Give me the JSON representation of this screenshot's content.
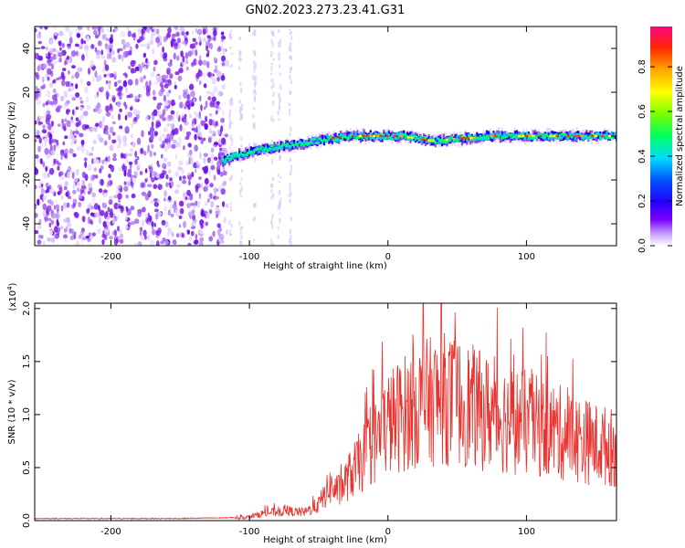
{
  "title": "GN02.2023.273.23.41.G31",
  "colors": {
    "trace": "#e8322e",
    "scatter": "#7b1ff0",
    "axis": "#000000"
  },
  "chart_data": [
    {
      "type": "heatmap",
      "xlabel": "Height of straight line (km)",
      "ylabel": "Frequency (Hz)",
      "xlim": [
        -255,
        165
      ],
      "ylim": [
        -50,
        50
      ],
      "xticks": [
        {
          "value": -200,
          "label": "-200"
        },
        {
          "value": -100,
          "label": "-100"
        },
        {
          "value": 0,
          "label": "0"
        },
        {
          "value": 100,
          "label": "100"
        }
      ],
      "yticks": [
        {
          "value": -40,
          "label": "-40"
        },
        {
          "value": -20,
          "label": "-20"
        },
        {
          "value": 0,
          "label": "0"
        },
        {
          "value": 20,
          "label": "20"
        },
        {
          "value": 40,
          "label": "40"
        }
      ],
      "colorbar": {
        "label": "Normalized spectral amplitude",
        "range": [
          0,
          0.98
        ],
        "ticks": [
          {
            "value": 0.0,
            "label": "0.0"
          },
          {
            "value": 0.2,
            "label": "0.2"
          },
          {
            "value": 0.4,
            "label": "0.4"
          },
          {
            "value": 0.6,
            "label": "0.6"
          },
          {
            "value": 0.8,
            "label": "0.8"
          }
        ]
      },
      "noise_region_x": [
        -255,
        -120
      ],
      "trace": {
        "x": [
          -120,
          -110,
          -100,
          -90,
          -80,
          -70,
          -60,
          -50,
          -40,
          -30,
          -20,
          -10,
          0,
          10,
          20,
          30,
          40,
          50,
          60,
          70,
          80,
          90,
          100,
          110,
          120,
          130,
          140,
          150,
          160
        ],
        "freq": [
          -11,
          -9,
          -7,
          -6,
          -5,
          -4,
          -3,
          -2,
          -1,
          0,
          0,
          0,
          0,
          0,
          -1,
          -2,
          -2,
          -1,
          -1,
          0,
          0,
          0,
          0,
          0,
          0,
          0,
          0,
          0,
          0
        ]
      }
    },
    {
      "type": "line",
      "xlabel": "Height of straight line (km)",
      "ylabel": "SNR (10 * v/v)",
      "yscale_label": "(x10",
      "yscale_exp": "4",
      "yscale_close": ")",
      "xlim": [
        -255,
        165
      ],
      "ylim": [
        0,
        2.05
      ],
      "xticks": [
        {
          "value": -200,
          "label": "-200"
        },
        {
          "value": -100,
          "label": "-100"
        },
        {
          "value": 0,
          "label": "0"
        },
        {
          "value": 100,
          "label": "100"
        }
      ],
      "yticks": [
        {
          "value": 0.0,
          "label": "0.0"
        },
        {
          "value": 0.5,
          "label": "0.5"
        },
        {
          "value": 1.0,
          "label": "1.0"
        },
        {
          "value": 1.5,
          "label": "1.5"
        },
        {
          "value": 2.0,
          "label": "2.0"
        }
      ],
      "envelope": {
        "x": [
          -255,
          -150,
          -100,
          -90,
          -75,
          -60,
          -50,
          -42,
          -35,
          -28,
          -20,
          -12,
          -5,
          0,
          10,
          20,
          30,
          40,
          50,
          60,
          70,
          80,
          90,
          100,
          110,
          120,
          130,
          140,
          150,
          165
        ],
        "y": [
          0.02,
          0.02,
          0.03,
          0.07,
          0.09,
          0.08,
          0.15,
          0.32,
          0.28,
          0.42,
          0.55,
          0.7,
          0.82,
          0.92,
          1.0,
          1.08,
          1.12,
          1.15,
          1.12,
          1.08,
          1.02,
          0.98,
          0.95,
          0.92,
          0.88,
          0.85,
          0.8,
          0.76,
          0.72,
          0.68
        ]
      }
    }
  ]
}
